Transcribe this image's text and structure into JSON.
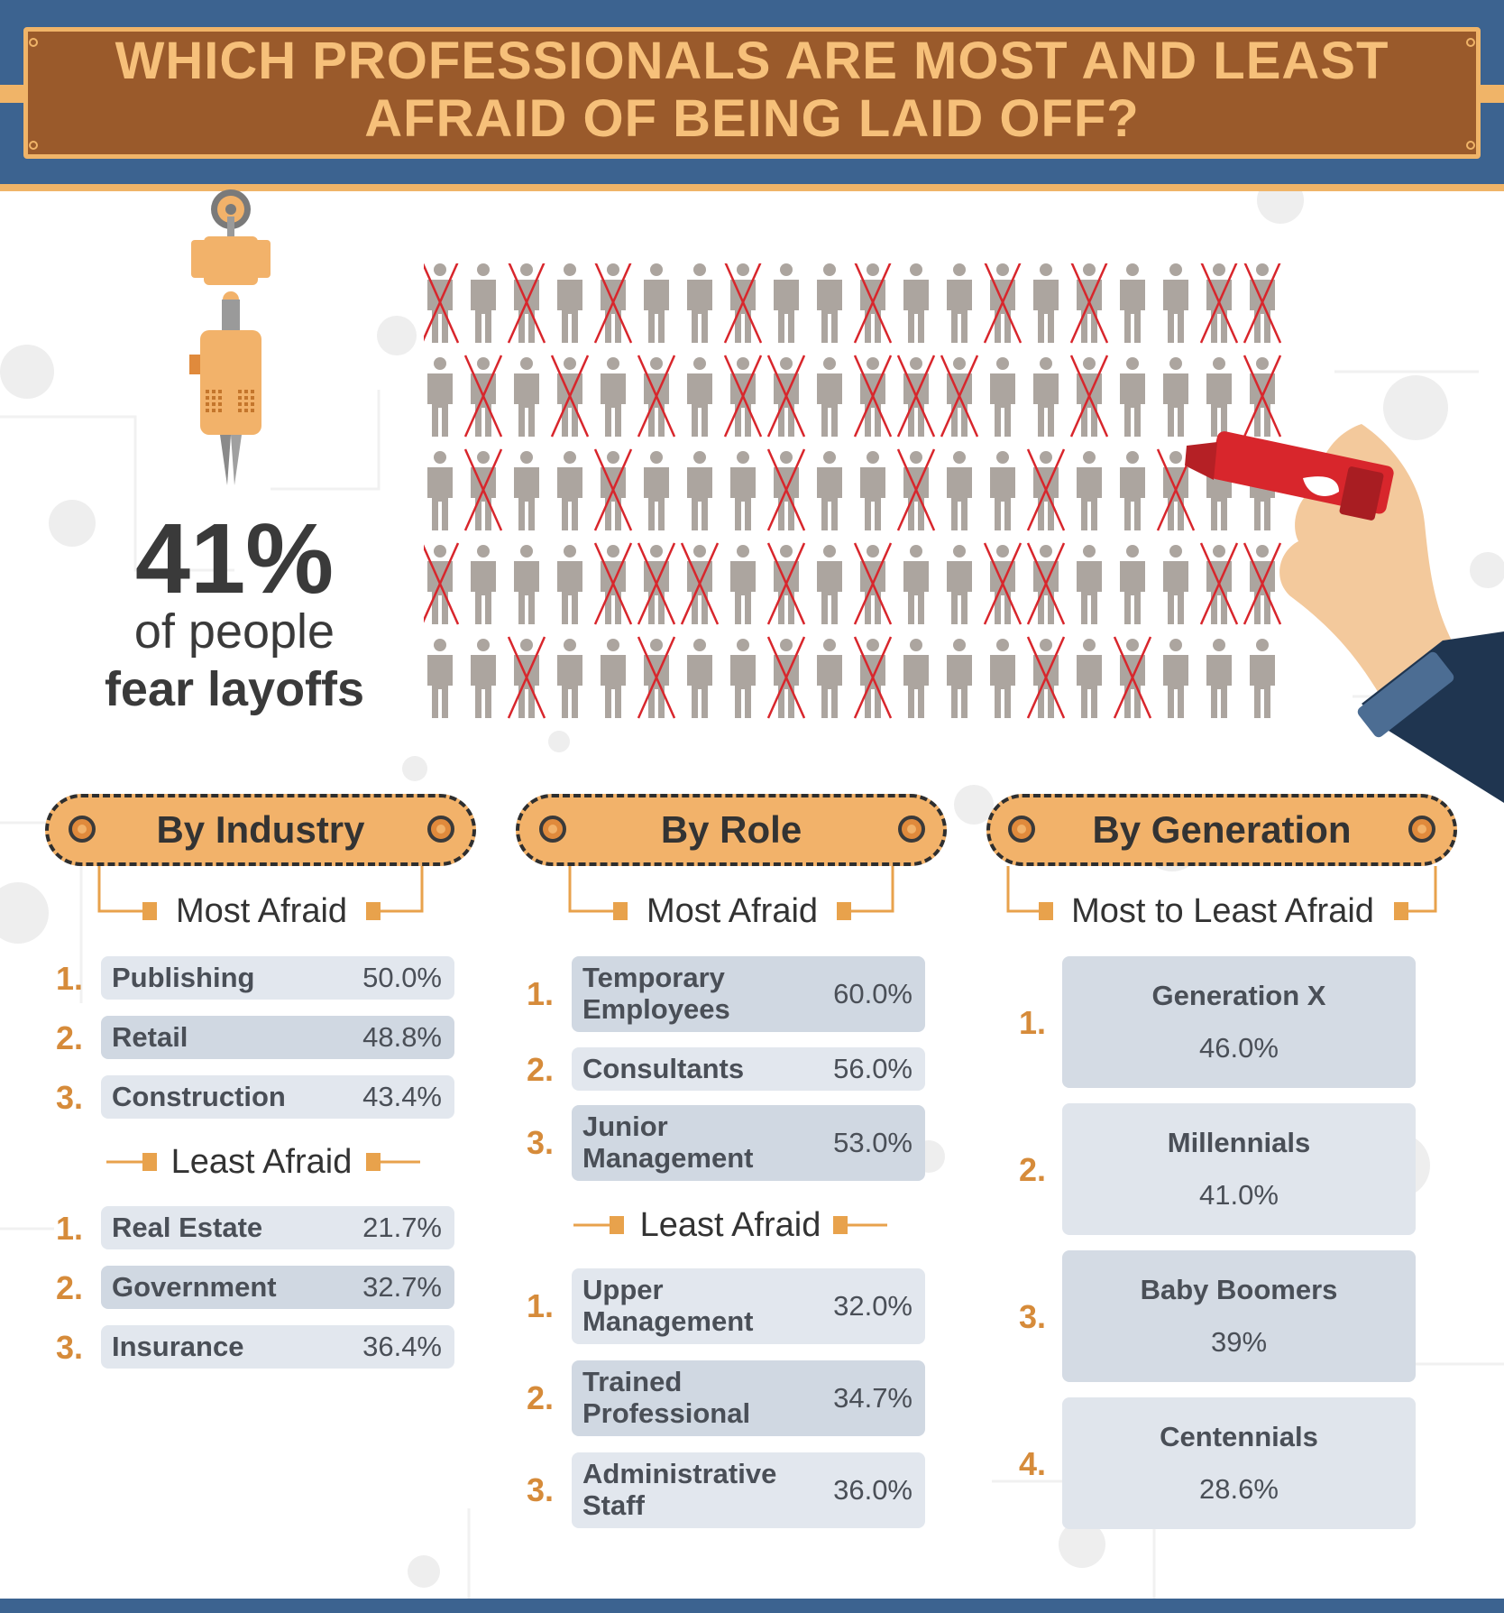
{
  "title_line1": "WHICH PROFESSIONALS ARE MOST AND LEAST",
  "title_line2": "AFRAID OF BEING LAID OFF?",
  "headline": {
    "percent": "41%",
    "line1": "of people",
    "line2": "fear layoffs"
  },
  "chart_data": [
    {
      "type": "table",
      "title": "By Industry",
      "groups": [
        {
          "label": "Most Afraid",
          "rows": [
            {
              "rank": "1.",
              "name": "Publishing",
              "value": "50.0%"
            },
            {
              "rank": "2.",
              "name": "Retail",
              "value": "48.8%"
            },
            {
              "rank": "3.",
              "name": "Construction",
              "value": "43.4%"
            }
          ]
        },
        {
          "label": "Least Afraid",
          "rows": [
            {
              "rank": "1.",
              "name": "Real Estate",
              "value": "21.7%"
            },
            {
              "rank": "2.",
              "name": "Government",
              "value": "32.7%"
            },
            {
              "rank": "3.",
              "name": "Insurance",
              "value": "36.4%"
            }
          ]
        }
      ]
    },
    {
      "type": "table",
      "title": "By Role",
      "groups": [
        {
          "label": "Most Afraid",
          "rows": [
            {
              "rank": "1.",
              "name_line1": "Temporary",
              "name_line2": "Employees",
              "value": "60.0%"
            },
            {
              "rank": "2.",
              "name_line1": "Consultants",
              "name_line2": "",
              "value": "56.0%"
            },
            {
              "rank": "3.",
              "name_line1": "Junior",
              "name_line2": "Management",
              "value": "53.0%"
            }
          ]
        },
        {
          "label": "Least Afraid",
          "rows": [
            {
              "rank": "1.",
              "name_line1": "Upper",
              "name_line2": "Management",
              "value": "32.0%"
            },
            {
              "rank": "2.",
              "name_line1": "Trained",
              "name_line2": "Professional",
              "value": "34.7%"
            },
            {
              "rank": "3.",
              "name_line1": "Administrative",
              "name_line2": "Staff",
              "value": "36.0%"
            }
          ]
        }
      ]
    },
    {
      "type": "table",
      "title": "By Generation",
      "groups": [
        {
          "label": "Most to Least Afraid",
          "rows": [
            {
              "rank": "1.",
              "name": "Generation X",
              "value": "46.0%"
            },
            {
              "rank": "2.",
              "name": "Millennials",
              "value": "41.0%"
            },
            {
              "rank": "3.",
              "name": "Baby Boomers",
              "value": "39%"
            },
            {
              "rank": "4.",
              "name": "Centennials",
              "value": "28.6%"
            }
          ]
        }
      ]
    }
  ],
  "pictogram": {
    "rows": 5,
    "cols": 20,
    "crossed": [
      [
        0,
        2,
        4,
        7,
        10,
        13,
        15,
        18,
        19
      ],
      [
        1,
        3,
        5,
        7,
        8,
        10,
        11,
        12,
        15,
        19
      ],
      [
        1,
        4,
        8,
        11,
        14,
        17
      ],
      [
        0,
        4,
        5,
        6,
        8,
        10,
        13,
        14,
        18,
        19
      ],
      [
        2,
        5,
        8,
        10,
        14,
        16
      ]
    ],
    "person_color": "#aca59f",
    "cross_color": "#d8262c"
  },
  "colors": {
    "header_blue": "#3c6390",
    "accent_orange": "#f0b468",
    "plate_brown": "#9a5a2b",
    "rank_orange": "#d68b3a"
  }
}
